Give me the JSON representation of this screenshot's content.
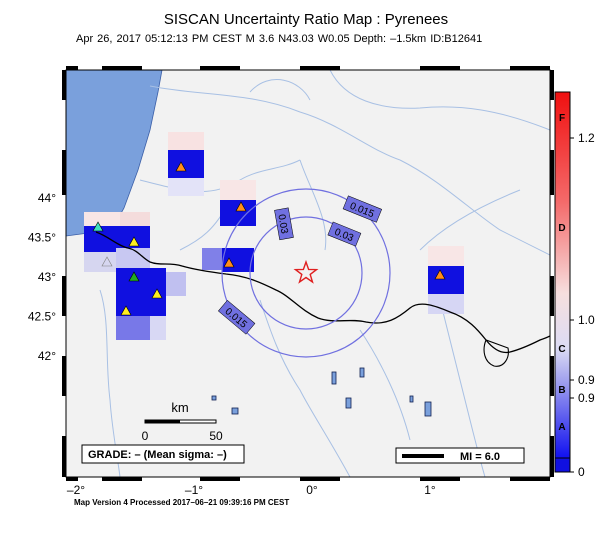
{
  "header": {
    "title": "SISCAN Uncertainty Ratio Map : Pyrenees",
    "subtitle": "Apr 26, 2017 05:12:13 PM CEST   M 3.6   N43.03 W0.05   Depth: –1.5km   ID:B12641"
  },
  "map": {
    "x_ticks": [
      {
        "label": "–2",
        "lon": -2
      },
      {
        "label": "–1",
        "lon": -1
      },
      {
        "label": "0",
        "lon": 0
      },
      {
        "label": "1",
        "lon": 1
      }
    ],
    "y_ticks": [
      {
        "label": "44",
        "lat": 44
      },
      {
        "label": "43.5",
        "lat": 43.5
      },
      {
        "label": "43",
        "lat": 43
      },
      {
        "label": "42.5",
        "lat": 42.5
      },
      {
        "label": "42",
        "lat": 42
      }
    ],
    "degree_sign": "°",
    "epicenter": {
      "lat": 43.03,
      "lon": -0.05,
      "icon": "star-icon",
      "color": "#e02020"
    },
    "contour_labels": [
      "0.015",
      "0.03",
      "0.03",
      "0.015"
    ],
    "colors": {
      "land": "#f2f2f2",
      "sea": "#7aa0dc",
      "river": "#9bb8e0",
      "contour": "#7070e0",
      "deep": "#1010e0"
    }
  },
  "scale_bar": {
    "title": "km",
    "start_label": "0",
    "end_label": "50"
  },
  "grade_box": {
    "text": "GRADE: – (Mean sigma: –)"
  },
  "mi_box": {
    "text": "MI = 6.0"
  },
  "colorbar": {
    "letters": [
      "F",
      "D",
      "C",
      "B",
      "A"
    ],
    "values": [
      "1.2",
      "1.0",
      "0.9",
      "0.9",
      "0"
    ]
  },
  "footer": {
    "text": "Map Version 4 Processed 2017–06–21 09:39:16 PM CEST"
  }
}
